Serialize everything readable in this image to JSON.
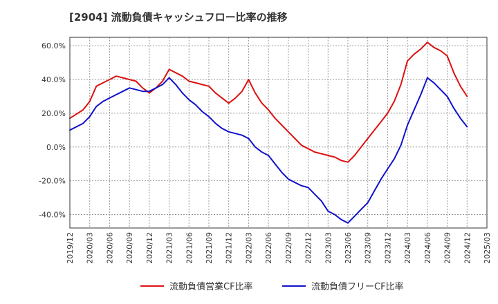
{
  "chart_data": {
    "type": "line",
    "title": "[2904]  流動負債キャッシュフロー比率の推移",
    "xlabel": "",
    "ylabel": "",
    "x_ticks": [
      "2019/12",
      "2020/03",
      "2020/06",
      "2020/09",
      "2020/12",
      "2021/03",
      "2021/06",
      "2021/09",
      "2021/12",
      "2022/03",
      "2022/06",
      "2022/09",
      "2022/12",
      "2023/03",
      "2023/06",
      "2023/09",
      "2023/12",
      "2024/03",
      "2024/06",
      "2024/09",
      "2024/12",
      "2025/03"
    ],
    "y_ticks": [
      "-40.0%",
      "-20.0%",
      "0.0%",
      "20.0%",
      "40.0%",
      "60.0%"
    ],
    "y_tick_values": [
      -40,
      -20,
      0,
      20,
      40,
      60
    ],
    "ylim": [
      -48,
      65
    ],
    "grid": true,
    "legend_position": "bottom",
    "series": [
      {
        "name": "流動負債営業CF比率",
        "color": "#dd1111",
        "points": [
          [
            "2019/12",
            17
          ],
          [
            "2020/02",
            22
          ],
          [
            "2020/03",
            27
          ],
          [
            "2020/04",
            36
          ],
          [
            "2020/05",
            38
          ],
          [
            "2020/06",
            40
          ],
          [
            "2020/07",
            42
          ],
          [
            "2020/08",
            41
          ],
          [
            "2020/09",
            40
          ],
          [
            "2020/10",
            39
          ],
          [
            "2020/11",
            35
          ],
          [
            "2020/12",
            32
          ],
          [
            "2021/01",
            35
          ],
          [
            "2021/02",
            39
          ],
          [
            "2021/03",
            46
          ],
          [
            "2021/04",
            44
          ],
          [
            "2021/05",
            42
          ],
          [
            "2021/06",
            39
          ],
          [
            "2021/07",
            38
          ],
          [
            "2021/08",
            37
          ],
          [
            "2021/09",
            36
          ],
          [
            "2021/10",
            32
          ],
          [
            "2021/11",
            29
          ],
          [
            "2021/12",
            26
          ],
          [
            "2022/01",
            29
          ],
          [
            "2022/02",
            33
          ],
          [
            "2022/03",
            40
          ],
          [
            "2022/04",
            32
          ],
          [
            "2022/05",
            26
          ],
          [
            "2022/06",
            22
          ],
          [
            "2022/07",
            17
          ],
          [
            "2022/08",
            13
          ],
          [
            "2022/09",
            9
          ],
          [
            "2022/10",
            5
          ],
          [
            "2022/11",
            1
          ],
          [
            "2022/12",
            -1
          ],
          [
            "2023/01",
            -3
          ],
          [
            "2023/02",
            -4
          ],
          [
            "2023/03",
            -5
          ],
          [
            "2023/04",
            -6
          ],
          [
            "2023/05",
            -8
          ],
          [
            "2023/06",
            -9
          ],
          [
            "2023/07",
            -5
          ],
          [
            "2023/08",
            0
          ],
          [
            "2023/09",
            5
          ],
          [
            "2023/10",
            10
          ],
          [
            "2023/11",
            15
          ],
          [
            "2023/12",
            20
          ],
          [
            "2024/01",
            27
          ],
          [
            "2024/02",
            37
          ],
          [
            "2024/03",
            51
          ],
          [
            "2024/04",
            55
          ],
          [
            "2024/05",
            58
          ],
          [
            "2024/06",
            62
          ],
          [
            "2024/07",
            59
          ],
          [
            "2024/08",
            57
          ],
          [
            "2024/09",
            54
          ],
          [
            "2024/10",
            44
          ],
          [
            "2024/11",
            36
          ],
          [
            "2024/12",
            30
          ]
        ]
      },
      {
        "name": "流動負債フリーCF比率",
        "color": "#1111cc",
        "points": [
          [
            "2019/12",
            10
          ],
          [
            "2020/02",
            14
          ],
          [
            "2020/03",
            18
          ],
          [
            "2020/04",
            24
          ],
          [
            "2020/05",
            27
          ],
          [
            "2020/06",
            29
          ],
          [
            "2020/07",
            31
          ],
          [
            "2020/08",
            33
          ],
          [
            "2020/09",
            35
          ],
          [
            "2020/10",
            34
          ],
          [
            "2020/11",
            33
          ],
          [
            "2020/12",
            33
          ],
          [
            "2021/01",
            35
          ],
          [
            "2021/02",
            37
          ],
          [
            "2021/03",
            41
          ],
          [
            "2021/04",
            37
          ],
          [
            "2021/05",
            32
          ],
          [
            "2021/06",
            28
          ],
          [
            "2021/07",
            25
          ],
          [
            "2021/08",
            21
          ],
          [
            "2021/09",
            18
          ],
          [
            "2021/10",
            14
          ],
          [
            "2021/11",
            11
          ],
          [
            "2021/12",
            9
          ],
          [
            "2022/01",
            8
          ],
          [
            "2022/02",
            7
          ],
          [
            "2022/03",
            5
          ],
          [
            "2022/04",
            0
          ],
          [
            "2022/05",
            -3
          ],
          [
            "2022/06",
            -5
          ],
          [
            "2022/07",
            -10
          ],
          [
            "2022/08",
            -15
          ],
          [
            "2022/09",
            -19
          ],
          [
            "2022/10",
            -21
          ],
          [
            "2022/11",
            -23
          ],
          [
            "2022/12",
            -24
          ],
          [
            "2023/01",
            -28
          ],
          [
            "2023/02",
            -32
          ],
          [
            "2023/03",
            -38
          ],
          [
            "2023/04",
            -40
          ],
          [
            "2023/05",
            -43
          ],
          [
            "2023/06",
            -45
          ],
          [
            "2023/07",
            -41
          ],
          [
            "2023/08",
            -37
          ],
          [
            "2023/09",
            -33
          ],
          [
            "2023/10",
            -26
          ],
          [
            "2023/11",
            -19
          ],
          [
            "2023/12",
            -13
          ],
          [
            "2024/01",
            -7
          ],
          [
            "2024/02",
            1
          ],
          [
            "2024/03",
            13
          ],
          [
            "2024/04",
            22
          ],
          [
            "2024/05",
            31
          ],
          [
            "2024/06",
            41
          ],
          [
            "2024/07",
            38
          ],
          [
            "2024/08",
            34
          ],
          [
            "2024/09",
            30
          ],
          [
            "2024/10",
            23
          ],
          [
            "2024/11",
            17
          ],
          [
            "2024/12",
            12
          ]
        ]
      }
    ]
  }
}
